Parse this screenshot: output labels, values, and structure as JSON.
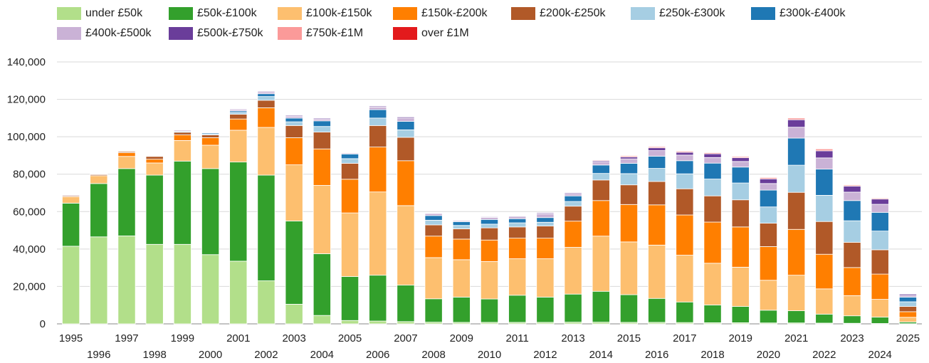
{
  "chart_data": {
    "type": "bar",
    "stacked": true,
    "title": "",
    "xlabel": "",
    "ylabel": "",
    "ylim": [
      0,
      140000
    ],
    "yticks": [
      0,
      20000,
      40000,
      60000,
      80000,
      100000,
      120000,
      140000
    ],
    "ytick_labels": [
      "0",
      "20,000",
      "40,000",
      "60,000",
      "80,000",
      "100,000",
      "120,000",
      "140,000"
    ],
    "grid": true,
    "legend_position": "top",
    "categories": [
      "1995",
      "1996",
      "1997",
      "1998",
      "1999",
      "2000",
      "2001",
      "2002",
      "2003",
      "2004",
      "2005",
      "2006",
      "2007",
      "2008",
      "2009",
      "2010",
      "2011",
      "2012",
      "2013",
      "2014",
      "2015",
      "2016",
      "2017",
      "2018",
      "2019",
      "2020",
      "2021",
      "2022",
      "2023",
      "2024",
      "2025"
    ],
    "series": [
      {
        "name": "under £50k",
        "color": "#b2df8a",
        "values": [
          41500,
          46500,
          47000,
          42500,
          42500,
          37000,
          33500,
          23000,
          10500,
          4500,
          1800,
          1500,
          1200,
          900,
          800,
          800,
          800,
          800,
          900,
          900,
          800,
          800,
          700,
          600,
          600,
          500,
          500,
          400,
          300,
          200,
          100
        ]
      },
      {
        "name": "£50k-£100k",
        "color": "#33a02c",
        "values": [
          23000,
          28500,
          36000,
          37000,
          44500,
          46000,
          53000,
          56500,
          44500,
          33000,
          23500,
          24500,
          19500,
          12500,
          13500,
          12500,
          14500,
          13500,
          15000,
          16500,
          14800,
          12800,
          11000,
          9500,
          8700,
          6800,
          6500,
          4800,
          4000,
          3400,
          900
        ]
      },
      {
        "name": "£100k-£150k",
        "color": "#fdbf6f",
        "values": [
          3500,
          4200,
          6500,
          6500,
          11000,
          12500,
          17000,
          25500,
          30000,
          36500,
          34000,
          44500,
          42500,
          22000,
          20000,
          20000,
          19500,
          20500,
          25000,
          29500,
          28200,
          28500,
          25000,
          22300,
          21000,
          16000,
          19000,
          13500,
          10800,
          9500,
          2500
        ]
      },
      {
        "name": "£150k-£200k",
        "color": "#ff7f00",
        "values": [
          0,
          0,
          2000,
          2000,
          3000,
          4000,
          6000,
          10500,
          14500,
          19500,
          18000,
          24000,
          24000,
          11500,
          11000,
          11500,
          11000,
          11000,
          14000,
          19000,
          20000,
          21500,
          21500,
          22000,
          21500,
          18000,
          24500,
          18500,
          15000,
          13500,
          3000
        ]
      },
      {
        "name": "£200k-£250k",
        "color": "#b15928",
        "values": [
          500,
          600,
          600,
          1500,
          1400,
          1500,
          2500,
          4000,
          6500,
          9000,
          8500,
          11500,
          12500,
          6000,
          5500,
          6500,
          6000,
          6500,
          8000,
          11000,
          10500,
          12500,
          14000,
          14000,
          14500,
          12500,
          19800,
          17500,
          13500,
          13000,
          2800
        ]
      },
      {
        "name": "£250k-£300k",
        "color": "#a6cee3",
        "values": [
          0,
          0,
          0,
          0,
          500,
          600,
          1000,
          2000,
          2000,
          3000,
          2500,
          4000,
          4000,
          2500,
          1800,
          2000,
          2200,
          2000,
          2500,
          3500,
          6000,
          7000,
          8000,
          9000,
          9000,
          8700,
          14500,
          14000,
          11500,
          10000,
          2500
        ]
      },
      {
        "name": "£300k-£400k",
        "color": "#1f78b4",
        "values": [
          0,
          0,
          0,
          0,
          0,
          500,
          800,
          1500,
          2000,
          3000,
          2500,
          4500,
          4500,
          2500,
          2000,
          2500,
          2200,
          2500,
          3000,
          4500,
          5500,
          6500,
          7000,
          8500,
          8500,
          9000,
          14500,
          14000,
          10800,
          10000,
          2500
        ]
      },
      {
        "name": "£400k-£500k",
        "color": "#cab2d6",
        "values": [
          400,
          300,
          300,
          300,
          600,
          300,
          700,
          800,
          1000,
          1000,
          500,
          1400,
          1800,
          1100,
          600,
          1100,
          1000,
          2000,
          1200,
          1600,
          2400,
          3000,
          3000,
          3000,
          3000,
          3500,
          5800,
          6000,
          4500,
          4300,
          900
        ]
      },
      {
        "name": "£500k-£750k",
        "color": "#6a3d9a",
        "values": [
          0,
          0,
          0,
          0,
          0,
          300,
          400,
          500,
          500,
          500,
          300,
          500,
          600,
          300,
          300,
          400,
          400,
          500,
          500,
          600,
          1000,
          1500,
          1500,
          2000,
          2000,
          2500,
          4000,
          3800,
          3200,
          2800,
          700
        ]
      },
      {
        "name": "£750k-£1M",
        "color": "#fb9a99",
        "values": [
          0,
          0,
          0,
          0,
          0,
          0,
          300,
          300,
          300,
          300,
          200,
          300,
          300,
          200,
          200,
          300,
          300,
          300,
          300,
          400,
          600,
          600,
          600,
          600,
          600,
          700,
          900,
          1000,
          600,
          500,
          150
        ]
      },
      {
        "name": "over £1M",
        "color": "#e31a1c",
        "values": [
          0,
          0,
          0,
          0,
          0,
          0,
          0,
          0,
          0,
          0,
          0,
          0,
          0,
          0,
          0,
          0,
          0,
          0,
          0,
          0,
          0,
          0,
          0,
          0,
          0,
          0,
          0,
          0,
          0,
          0,
          0
        ]
      }
    ]
  }
}
